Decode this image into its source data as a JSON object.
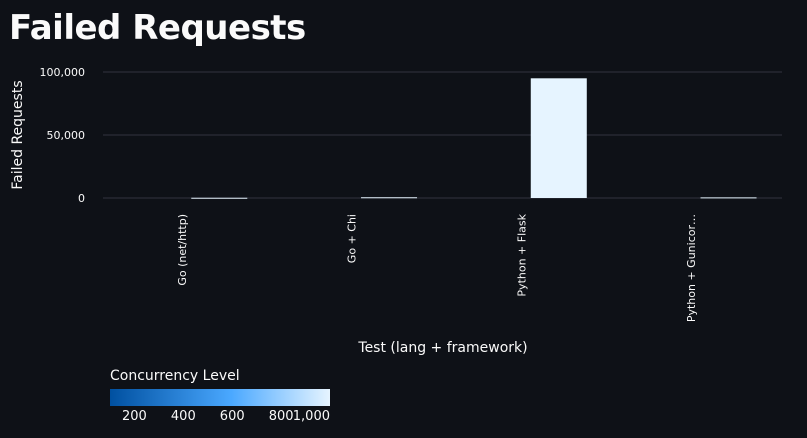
{
  "page_title": "Failed Requests",
  "colors": {
    "background": "#0e1117",
    "grid": "#31333f",
    "axis_text": "#fafafa",
    "colorscale_low": "#0050a0",
    "colorscale_mid": "#4aa8ff",
    "colorscale_high": "#e6f4ff"
  },
  "chart_data": {
    "type": "bar",
    "title": "Failed Requests",
    "xlabel": "Test (lang + framework)",
    "ylabel": "Failed Requests",
    "categories": [
      "Go (net/http)",
      "Go + Chi",
      "Python + Flask",
      "Python + Gunicor…"
    ],
    "values": [
      200,
      600,
      95000,
      500
    ],
    "concurrency": [
      1000,
      1000,
      1000,
      1000
    ],
    "ylim": [
      0,
      105000
    ],
    "yticks": [
      0,
      50000,
      100000
    ],
    "ytick_labels": [
      "0",
      "50,000",
      "100,000"
    ],
    "grid": true,
    "legend": {
      "title": "Concurrency Level",
      "placement": "bottom-left",
      "range": [
        100,
        1000
      ],
      "ticks": [
        200,
        400,
        600,
        800,
        1000
      ],
      "tick_labels": [
        "200",
        "400",
        "600",
        "800",
        "1,000"
      ]
    }
  }
}
